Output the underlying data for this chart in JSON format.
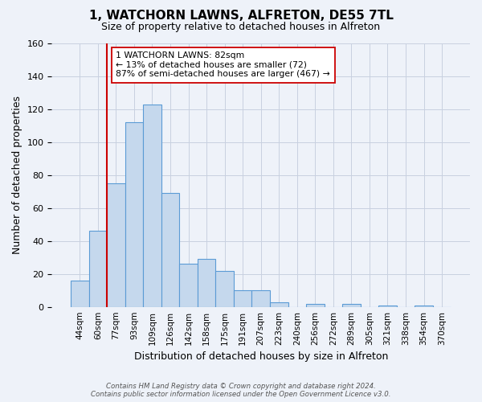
{
  "title": "1, WATCHORN LAWNS, ALFRETON, DE55 7TL",
  "subtitle": "Size of property relative to detached houses in Alfreton",
  "xlabel": "Distribution of detached houses by size in Alfreton",
  "ylabel": "Number of detached properties",
  "bin_labels": [
    "44sqm",
    "60sqm",
    "77sqm",
    "93sqm",
    "109sqm",
    "126sqm",
    "142sqm",
    "158sqm",
    "175sqm",
    "191sqm",
    "207sqm",
    "223sqm",
    "240sqm",
    "256sqm",
    "272sqm",
    "289sqm",
    "305sqm",
    "321sqm",
    "338sqm",
    "354sqm",
    "370sqm"
  ],
  "bar_heights": [
    16,
    46,
    75,
    112,
    123,
    69,
    26,
    29,
    22,
    10,
    10,
    3,
    0,
    2,
    0,
    2,
    0,
    1,
    0,
    1,
    0
  ],
  "bar_color": "#c5d8ed",
  "bar_edge_color": "#5b9bd5",
  "ylim": [
    0,
    160
  ],
  "yticks": [
    0,
    20,
    40,
    60,
    80,
    100,
    120,
    140,
    160
  ],
  "vline_index": 2,
  "vline_color": "#cc0000",
  "annotation_line1": "1 WATCHORN LAWNS: 82sqm",
  "annotation_line2": "← 13% of detached houses are smaller (72)",
  "annotation_line3": "87% of semi-detached houses are larger (467) →",
  "annotation_box_color": "#ffffff",
  "annotation_box_edge": "#cc0000",
  "footer_line1": "Contains HM Land Registry data © Crown copyright and database right 2024.",
  "footer_line2": "Contains public sector information licensed under the Open Government Licence v3.0.",
  "background_color": "#eef2f9",
  "plot_bg_color": "#eef2f9",
  "grid_color": "#c8d0e0"
}
